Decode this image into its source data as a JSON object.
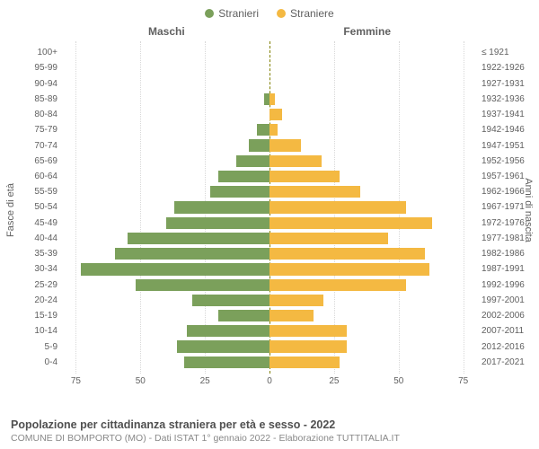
{
  "chart": {
    "type": "population-pyramid",
    "background_color": "#ffffff",
    "grid_color": "#d8d8d8",
    "center_line_color": "#808000",
    "text_color": "#606060",
    "legend": [
      {
        "label": "Stranieri",
        "color": "#7ba05b"
      },
      {
        "label": "Straniere",
        "color": "#f4b942"
      }
    ],
    "column_headers": {
      "left": "Maschi",
      "right": "Femmine"
    },
    "y_axis_titles": {
      "left": "Fasce di età",
      "right": "Anni di nascita"
    },
    "x_axis": {
      "max": 80,
      "ticks_left": [
        75,
        50,
        25,
        0
      ],
      "ticks_right": [
        25,
        50,
        75
      ]
    },
    "male_color": "#7ba05b",
    "female_color": "#f4b942",
    "rows": [
      {
        "age": "100+",
        "birth": "≤ 1921",
        "m": 0,
        "f": 0
      },
      {
        "age": "95-99",
        "birth": "1922-1926",
        "m": 0,
        "f": 0
      },
      {
        "age": "90-94",
        "birth": "1927-1931",
        "m": 0,
        "f": 0
      },
      {
        "age": "85-89",
        "birth": "1932-1936",
        "m": 2,
        "f": 2
      },
      {
        "age": "80-84",
        "birth": "1937-1941",
        "m": 0,
        "f": 5
      },
      {
        "age": "75-79",
        "birth": "1942-1946",
        "m": 5,
        "f": 3
      },
      {
        "age": "70-74",
        "birth": "1947-1951",
        "m": 8,
        "f": 12
      },
      {
        "age": "65-69",
        "birth": "1952-1956",
        "m": 13,
        "f": 20
      },
      {
        "age": "60-64",
        "birth": "1957-1961",
        "m": 20,
        "f": 27
      },
      {
        "age": "55-59",
        "birth": "1962-1966",
        "m": 23,
        "f": 35
      },
      {
        "age": "50-54",
        "birth": "1967-1971",
        "m": 37,
        "f": 53
      },
      {
        "age": "45-49",
        "birth": "1972-1976",
        "m": 40,
        "f": 63
      },
      {
        "age": "40-44",
        "birth": "1977-1981",
        "m": 55,
        "f": 46
      },
      {
        "age": "35-39",
        "birth": "1982-1986",
        "m": 60,
        "f": 60
      },
      {
        "age": "30-34",
        "birth": "1987-1991",
        "m": 73,
        "f": 62
      },
      {
        "age": "25-29",
        "birth": "1992-1996",
        "m": 52,
        "f": 53
      },
      {
        "age": "20-24",
        "birth": "1997-2001",
        "m": 30,
        "f": 21
      },
      {
        "age": "15-19",
        "birth": "2002-2006",
        "m": 20,
        "f": 17
      },
      {
        "age": "10-14",
        "birth": "2007-2011",
        "m": 32,
        "f": 30
      },
      {
        "age": "5-9",
        "birth": "2012-2016",
        "m": 36,
        "f": 30
      },
      {
        "age": "0-4",
        "birth": "2017-2021",
        "m": 33,
        "f": 27
      }
    ],
    "footer": {
      "title": "Popolazione per cittadinanza straniera per età e sesso - 2022",
      "subtitle": "COMUNE DI BOMPORTO (MO) - Dati ISTAT 1° gennaio 2022 - Elaborazione TUTTITALIA.IT",
      "title_fontsize": 12.5,
      "subtitle_fontsize": 10.5
    }
  }
}
